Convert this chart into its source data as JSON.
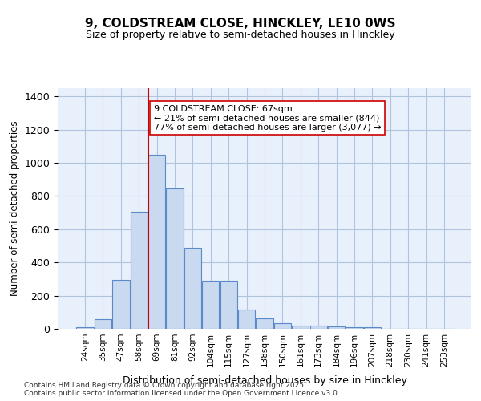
{
  "title1": "9, COLDSTREAM CLOSE, HINCKLEY, LE10 0WS",
  "title2": "Size of property relative to semi-detached houses in Hinckley",
  "xlabel": "Distribution of semi-detached houses by size in Hinckley",
  "ylabel": "Number of semi-detached properties",
  "bin_labels": [
    "24sqm",
    "35sqm",
    "47sqm",
    "58sqm",
    "69sqm",
    "81sqm",
    "92sqm",
    "104sqm",
    "115sqm",
    "127sqm",
    "138sqm",
    "150sqm",
    "161sqm",
    "173sqm",
    "184sqm",
    "196sqm",
    "207sqm",
    "218sqm",
    "230sqm",
    "241sqm",
    "253sqm"
  ],
  "bar_values": [
    10,
    60,
    295,
    705,
    1050,
    845,
    490,
    290,
    290,
    115,
    65,
    35,
    20,
    20,
    15,
    10,
    10,
    0,
    0,
    0,
    0
  ],
  "bar_color": "#c9d9f0",
  "bar_edge_color": "#5b8ac9",
  "grid_color": "#b0c4de",
  "bg_color": "#e8f0fb",
  "vline_x": 4,
  "vline_color": "#cc0000",
  "annotation_text": "9 COLDSTREAM CLOSE: 67sqm\n← 21% of semi-detached houses are smaller (844)\n77% of semi-detached houses are larger (3,077) →",
  "annotation_box_color": "#ffffff",
  "annotation_box_edge": "#cc0000",
  "footer_text": "Contains HM Land Registry data © Crown copyright and database right 2025.\nContains public sector information licensed under the Open Government Licence v3.0.",
  "ylim": [
    0,
    1450
  ],
  "yticks": [
    0,
    200,
    400,
    600,
    800,
    1000,
    1200,
    1400
  ]
}
